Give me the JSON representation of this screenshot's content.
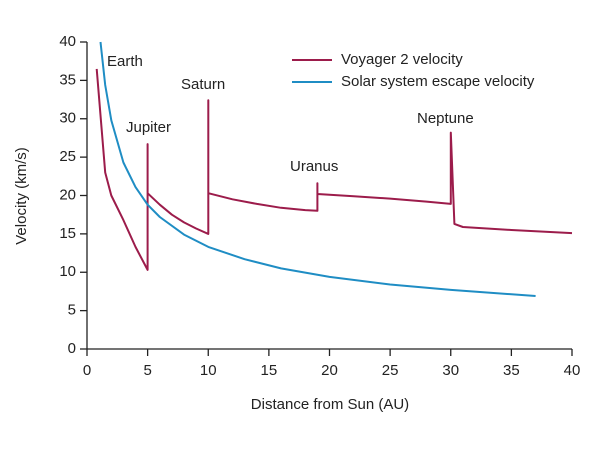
{
  "chart_data": {
    "type": "line",
    "xlabel": "Distance from Sun (AU)",
    "ylabel": "Velocity (km/s)",
    "xlim": [
      0,
      40
    ],
    "ylim": [
      0,
      40
    ],
    "xticks": [
      0,
      5,
      10,
      15,
      20,
      25,
      30,
      35,
      40
    ],
    "yticks": [
      0,
      5,
      10,
      15,
      20,
      25,
      30,
      35,
      40
    ],
    "legend": "upper right",
    "annotations": [
      "Earth",
      "Jupiter",
      "Saturn",
      "Uranus",
      "Neptune"
    ],
    "series": [
      {
        "name": "Voyager 2 velocity",
        "color": "#9c1c4b",
        "x": [
          0.8,
          1.5,
          2,
          3,
          4,
          5,
          5,
          5,
          6,
          7,
          8,
          9,
          10,
          10,
          10,
          12,
          14,
          16,
          18,
          19,
          19,
          19,
          22,
          25,
          28,
          30,
          30,
          30.3,
          31,
          35,
          40
        ],
        "values": [
          36.5,
          23,
          20,
          16.8,
          13.3,
          10.3,
          26.7,
          20.3,
          18.8,
          17.5,
          16.5,
          15.7,
          15,
          32.4,
          20.3,
          19.5,
          18.9,
          18.4,
          18.1,
          18,
          21.6,
          20.2,
          19.9,
          19.6,
          19.2,
          18.9,
          28.2,
          16.3,
          15.9,
          15.5,
          15.1
        ]
      },
      {
        "name": "Solar system escape velocity",
        "color": "#1f8dc4",
        "x": [
          1.11,
          1.5,
          2,
          3,
          4,
          5,
          6,
          8,
          10,
          13,
          16,
          20,
          25,
          30,
          37
        ],
        "values": [
          40,
          34.4,
          29.8,
          24.3,
          21.1,
          18.8,
          17.2,
          14.9,
          13.3,
          11.7,
          10.5,
          9.4,
          8.4,
          7.7,
          6.9
        ]
      }
    ]
  }
}
